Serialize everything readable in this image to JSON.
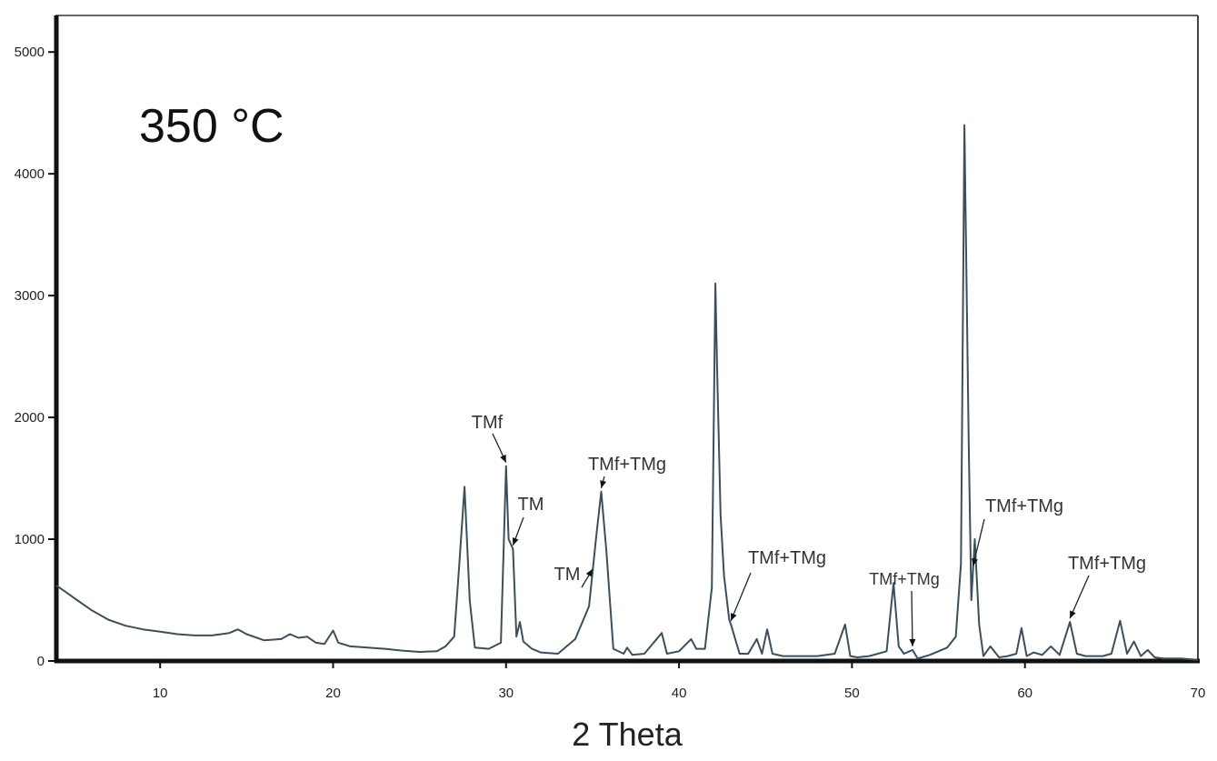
{
  "chart_data": {
    "type": "line",
    "title": "350 °C",
    "xlabel": "2 Theta",
    "ylabel": "",
    "xlim": [
      4,
      70
    ],
    "ylim": [
      0,
      5300
    ],
    "xticks": [
      10,
      20,
      30,
      40,
      50,
      60,
      70
    ],
    "yticks": [
      0,
      1000,
      2000,
      3000,
      4000,
      5000
    ],
    "grid": false,
    "series": [
      {
        "color": "#3d4f5a",
        "x": [
          4.0,
          4.5,
          5.0,
          5.5,
          6.0,
          7.0,
          8.0,
          9.0,
          10.0,
          11.0,
          12.0,
          13.0,
          14.0,
          14.5,
          15.0,
          16.0,
          17.0,
          17.5,
          18.0,
          18.5,
          19.0,
          19.5,
          20.0,
          20.3,
          21.0,
          22.0,
          23.0,
          24.0,
          25.0,
          26.0,
          26.5,
          27.0,
          27.3,
          27.6,
          27.9,
          28.2,
          29.0,
          29.7,
          30.0,
          30.15,
          30.4,
          30.6,
          30.8,
          31.0,
          31.5,
          32.0,
          33.0,
          34.0,
          34.8,
          35.2,
          35.5,
          35.8,
          36.2,
          36.8,
          37.0,
          37.3,
          38.0,
          39.0,
          39.3,
          40.0,
          40.7,
          41.0,
          41.5,
          41.9,
          42.1,
          42.2,
          42.4,
          42.6,
          42.9,
          43.0,
          43.5,
          44.0,
          44.5,
          44.8,
          45.1,
          45.4,
          46.0,
          47.0,
          48.0,
          49.0,
          49.6,
          49.9,
          50.3,
          51.0,
          52.0,
          52.4,
          52.7,
          53.0,
          53.5,
          53.8,
          54.5,
          55.5,
          56.0,
          56.3,
          56.5,
          56.75,
          56.9,
          57.1,
          57.35,
          57.6,
          58.0,
          58.5,
          59.0,
          59.5,
          59.8,
          60.1,
          60.5,
          61.0,
          61.5,
          62.0,
          62.6,
          63.0,
          63.5,
          64.0,
          64.5,
          65.0,
          65.5,
          65.9,
          66.3,
          66.7,
          67.1,
          67.5,
          68.0,
          68.5,
          69.0,
          70.0
        ],
        "y": [
          620,
          570,
          520,
          470,
          420,
          340,
          290,
          260,
          240,
          220,
          210,
          210,
          230,
          260,
          220,
          170,
          180,
          220,
          190,
          200,
          150,
          140,
          250,
          150,
          120,
          110,
          100,
          85,
          75,
          80,
          120,
          200,
          800,
          1430,
          500,
          110,
          100,
          150,
          1600,
          1000,
          920,
          200,
          320,
          160,
          100,
          70,
          60,
          180,
          450,
          1000,
          1390,
          900,
          100,
          60,
          110,
          50,
          60,
          230,
          60,
          80,
          180,
          100,
          100,
          600,
          3100,
          2400,
          1200,
          700,
          340,
          300,
          60,
          60,
          180,
          60,
          260,
          60,
          40,
          40,
          40,
          60,
          300,
          40,
          30,
          40,
          80,
          640,
          120,
          60,
          90,
          20,
          50,
          110,
          200,
          800,
          4400,
          1800,
          500,
          1000,
          300,
          40,
          120,
          30,
          40,
          60,
          270,
          40,
          70,
          50,
          120,
          50,
          320,
          60,
          40,
          40,
          40,
          60,
          330,
          60,
          160,
          40,
          90,
          30,
          20,
          20,
          20,
          10
        ]
      }
    ],
    "annotations": [
      {
        "text": "TMf",
        "x": 30.0
      },
      {
        "text": "TM",
        "x": 30.4
      },
      {
        "text": "TM",
        "x": 35.0
      },
      {
        "text": "TMf+TMg",
        "x": 35.5
      },
      {
        "text": "TMf+TMg",
        "x": 43.0
      },
      {
        "text": "TMf+TMg",
        "x": 53.5
      },
      {
        "text": "TMf+TMg",
        "x": 57.0
      },
      {
        "text": "TMf+TMg",
        "x": 62.6
      }
    ]
  }
}
